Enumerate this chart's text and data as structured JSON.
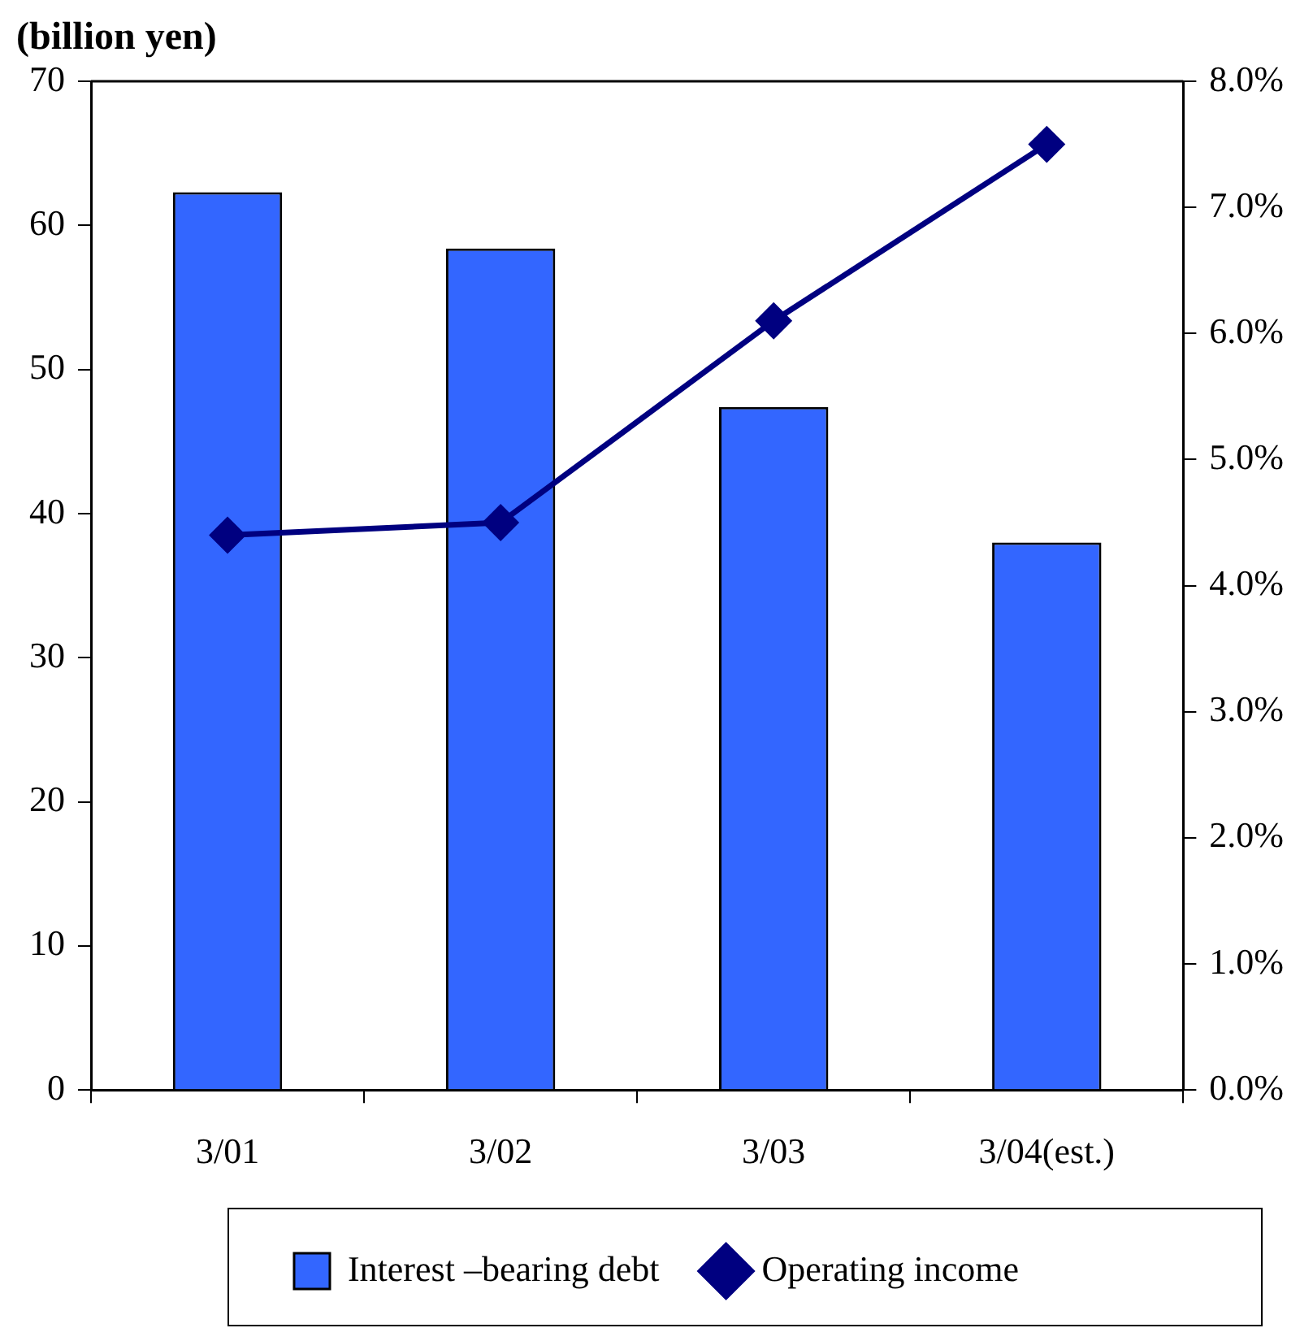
{
  "chart_data": {
    "type": "bar",
    "ylabel": "(billion yen)",
    "categories": [
      "3/01",
      "3/02",
      "3/03",
      "3/04(est.)"
    ],
    "series": [
      {
        "name": "Interest –bearing debt",
        "color": "#3366ff",
        "values": [
          62.3,
          58.4,
          47.4,
          38.0
        ]
      },
      {
        "name": "Operating income",
        "type": "line",
        "axis": "y2",
        "color": "#000080",
        "values": [
          4.4,
          4.5,
          6.1,
          7.5
        ]
      }
    ],
    "ylim": [
      0,
      70
    ],
    "yticks": [
      0,
      10,
      20,
      30,
      40,
      50,
      60,
      70
    ],
    "y2lim": [
      0,
      8
    ],
    "y2ticks": [
      {
        "value": 0,
        "label": "0.0%"
      },
      {
        "value": 1,
        "label": "1.0%"
      },
      {
        "value": 2,
        "label": "2.0%"
      },
      {
        "value": 3,
        "label": "3.0%"
      },
      {
        "value": 4,
        "label": "4.0%"
      },
      {
        "value": 5,
        "label": "5.0%"
      },
      {
        "value": 6,
        "label": "6.0%"
      },
      {
        "value": 7,
        "label": "7.0%"
      },
      {
        "value": 8,
        "label": "8.0%"
      }
    ],
    "grid": false,
    "legend": "bottom",
    "marker": "diamond"
  }
}
